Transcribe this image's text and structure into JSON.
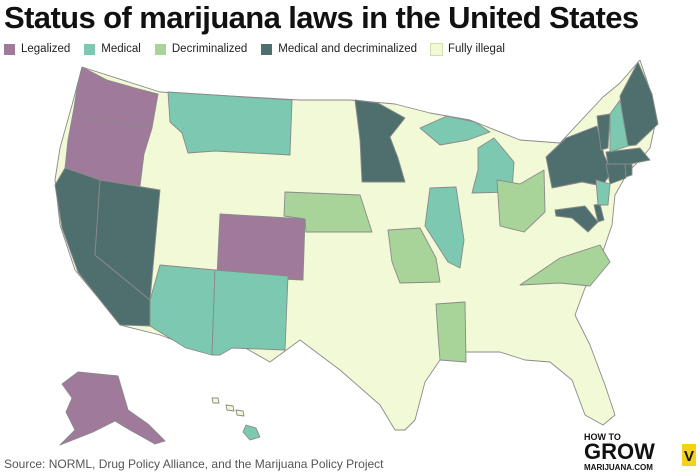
{
  "title": "Status of marijuana laws in the United States",
  "legend": [
    {
      "key": "legalized",
      "label": "Legalized",
      "color": "#a07a9a"
    },
    {
      "key": "medical",
      "label": "Medical",
      "color": "#7cc8b0"
    },
    {
      "key": "decriminalized",
      "label": "Decriminalized",
      "color": "#a8d49a"
    },
    {
      "key": "medical_decriminalized",
      "label": "Medical and decriminalized",
      "color": "#4f6f6e"
    },
    {
      "key": "illegal",
      "label": "Fully illegal",
      "color": "#f1f9d6"
    }
  ],
  "source": "Source: NORML, Drug Policy Alliance, and the Marijuana Policy Project",
  "logo": {
    "line1": "HOW TO",
    "line2": "GROW",
    "line3": "MARIJUANA.COM",
    "badge": "V"
  }
}
